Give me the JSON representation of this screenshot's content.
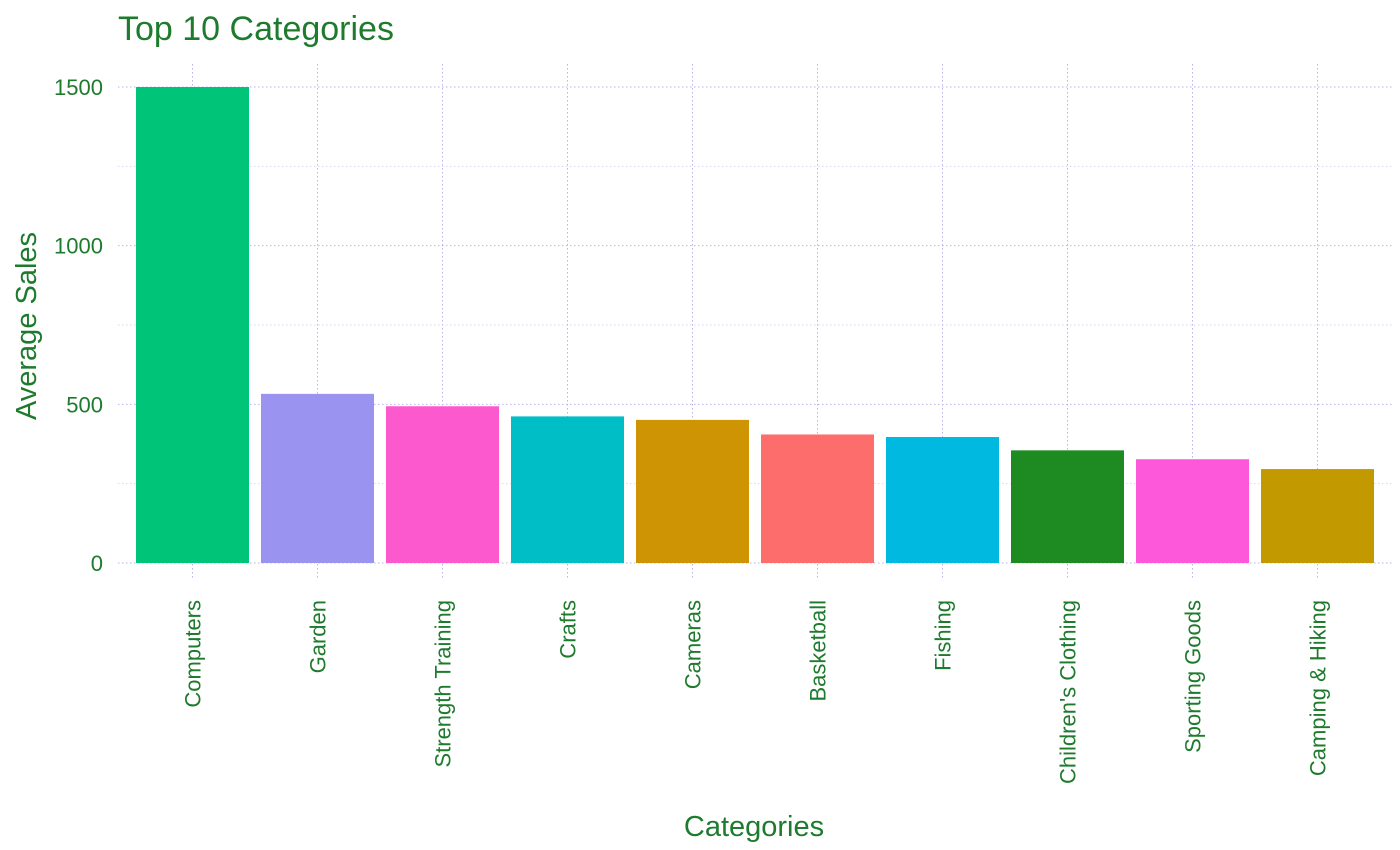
{
  "chart_data": {
    "type": "bar",
    "title": "Top 10 Categories",
    "xlabel": "Categories",
    "ylabel": "Average Sales",
    "ylim": [
      0,
      1500
    ],
    "y_ticks": [
      0,
      500,
      1000,
      1500
    ],
    "grid": true,
    "legend": "none",
    "categories": [
      "Computers",
      "Garden",
      "Strength Training",
      "Crafts",
      "Cameras",
      "Basketball",
      "Fishing",
      "Children's Clothing",
      "Sporting Goods",
      "Camping & Hiking"
    ],
    "values": [
      1500,
      533,
      494,
      462,
      451,
      405,
      397,
      355,
      327,
      296
    ],
    "bar_colors": [
      "#00c478",
      "#9b93f0",
      "#fd59cf",
      "#00bec5",
      "#cf9403",
      "#fd6d6c",
      "#00b9e0",
      "#1e8b22",
      "#fd58da",
      "#c29a00"
    ]
  },
  "colors": {
    "text": "#1e7b2e",
    "grid": "#b9b4e6"
  }
}
